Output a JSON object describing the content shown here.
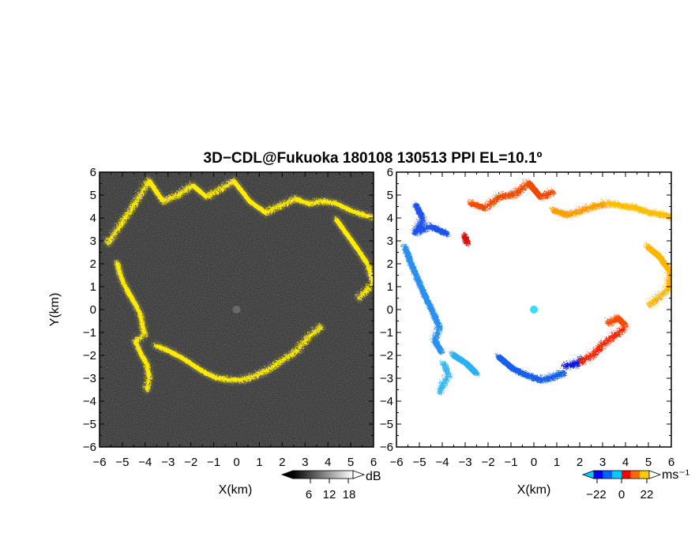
{
  "title": "3D−CDL@Fukuoka 180108 130513 PPI EL=10.1º",
  "chart_data": [
    {
      "type": "heatmap",
      "panel": "reflectivity",
      "xlabel": "X(km)",
      "ylabel": "Y(km)",
      "xlim": [
        -6,
        6
      ],
      "ylim": [
        -6,
        6
      ],
      "x_ticks": [
        "−6",
        "−5",
        "−4",
        "−3",
        "−2",
        "−1",
        "0",
        "1",
        "2",
        "3",
        "4",
        "5",
        "6"
      ],
      "y_ticks": [
        "−6",
        "−5",
        "−4",
        "−3",
        "−2",
        "−1",
        "0",
        "1",
        "2",
        "3",
        "4",
        "5",
        "6"
      ],
      "colorbar": {
        "unit": "dB",
        "ticks": [
          "6",
          "12",
          "18"
        ],
        "colors": [
          "#000000",
          "#303030",
          "#606060",
          "#909090",
          "#c0c0c0",
          "#ffffff"
        ]
      },
      "background_color": "#1b1b1b",
      "echo_color": "#ffeb00",
      "ring_outer": [
        [
          -5.7,
          3.0
        ],
        [
          -5.2,
          3.7
        ],
        [
          -4.6,
          4.6
        ],
        [
          -3.9,
          5.7
        ],
        [
          -3.3,
          4.8
        ],
        [
          -2.6,
          5.1
        ],
        [
          -2.0,
          5.5
        ],
        [
          -1.4,
          5.0
        ],
        [
          -0.8,
          5.3
        ],
        [
          -0.2,
          5.7
        ],
        [
          0.5,
          4.8
        ],
        [
          1.2,
          4.3
        ],
        [
          1.8,
          4.6
        ],
        [
          2.5,
          4.9
        ],
        [
          3.1,
          4.7
        ],
        [
          3.7,
          4.8
        ],
        [
          4.3,
          4.7
        ],
        [
          4.9,
          4.4
        ],
        [
          5.5,
          4.2
        ],
        [
          5.9,
          4.1
        ]
      ],
      "ring_west": [
        [
          -5.3,
          2.1
        ],
        [
          -5.1,
          1.4
        ],
        [
          -4.8,
          0.8
        ],
        [
          -4.5,
          0.3
        ],
        [
          -4.3,
          -0.1
        ],
        [
          -4.2,
          -0.6
        ],
        [
          -4.1,
          -1.0
        ],
        [
          -4.5,
          -1.3
        ],
        [
          -4.3,
          -1.8
        ],
        [
          -4.0,
          -2.3
        ],
        [
          -3.9,
          -2.9
        ],
        [
          -4.0,
          -3.4
        ]
      ],
      "ring_south": [
        [
          -3.6,
          -1.5
        ],
        [
          -2.9,
          -1.8
        ],
        [
          -2.2,
          -2.2
        ],
        [
          -1.6,
          -2.6
        ],
        [
          -1.0,
          -2.9
        ],
        [
          -0.4,
          -3.0
        ],
        [
          0.2,
          -3.0
        ],
        [
          0.8,
          -2.8
        ],
        [
          1.4,
          -2.5
        ],
        [
          2.0,
          -2.1
        ],
        [
          2.6,
          -1.7
        ],
        [
          3.1,
          -1.1
        ],
        [
          3.6,
          -0.7
        ]
      ],
      "ring_east": [
        [
          4.3,
          4.0
        ],
        [
          4.8,
          3.3
        ],
        [
          5.3,
          2.6
        ],
        [
          5.7,
          2.0
        ],
        [
          5.9,
          1.2
        ],
        [
          5.6,
          0.9
        ],
        [
          5.3,
          0.6
        ]
      ],
      "center_spot": [
        0.0,
        0.0
      ]
    },
    {
      "type": "heatmap",
      "panel": "doppler_velocity",
      "xlabel": "X(km)",
      "ylabel": "",
      "xlim": [
        -6,
        6
      ],
      "ylim": [
        -6,
        6
      ],
      "x_ticks": [
        "−6",
        "−5",
        "−4",
        "−3",
        "−2",
        "−1",
        "0",
        "1",
        "2",
        "3",
        "4",
        "5",
        "6"
      ],
      "y_ticks": [
        "−6",
        "−5",
        "−4",
        "−3",
        "−2",
        "−1",
        "0",
        "1",
        "2",
        "3",
        "4",
        "5",
        "6"
      ],
      "colorbar": {
        "unit": "ms⁻¹",
        "ticks": [
          "−22",
          "0",
          "22"
        ],
        "colors": [
          "#0000ff",
          "#0066ff",
          "#00ccff",
          "#ff0000",
          "#ff6a00",
          "#ffcc00"
        ]
      },
      "segments": [
        {
          "points": [
            [
              -5.2,
              4.6
            ],
            [
              -4.9,
              4.0
            ],
            [
              -5.3,
              3.4
            ],
            [
              -4.6,
              3.7
            ],
            [
              -3.9,
              3.4
            ]
          ],
          "color": "#1a52f0"
        },
        {
          "points": [
            [
              -5.7,
              2.8
            ],
            [
              -5.4,
              2.0
            ],
            [
              -5.1,
              1.3
            ],
            [
              -4.8,
              0.6
            ],
            [
              -4.5,
              0.0
            ],
            [
              -4.2,
              -0.7
            ],
            [
              -4.4,
              -1.3
            ],
            [
              -4.1,
              -1.8
            ]
          ],
          "color": "#2a90f0"
        },
        {
          "points": [
            [
              -4.0,
              -2.3
            ],
            [
              -3.8,
              -2.8
            ],
            [
              -4.1,
              -3.3
            ],
            [
              -4.2,
              -3.6
            ]
          ],
          "color": "#3cb8f0"
        },
        {
          "points": [
            [
              -3.6,
              -1.9
            ],
            [
              -3.0,
              -2.3
            ],
            [
              -2.6,
              -2.7
            ]
          ],
          "color": "#2cb0f5"
        },
        {
          "points": [
            [
              -1.6,
              -2.0
            ],
            [
              -1.0,
              -2.5
            ],
            [
              -0.4,
              -2.8
            ],
            [
              0.2,
              -3.0
            ],
            [
              0.7,
              -2.9
            ],
            [
              1.2,
              -2.7
            ]
          ],
          "color": "#1560f0"
        },
        {
          "points": [
            [
              1.3,
              -2.4
            ],
            [
              1.8,
              -2.3
            ],
            [
              2.0,
              -2.1
            ]
          ],
          "color": "#0a1de0"
        },
        {
          "points": [
            [
              2.0,
              -2.2
            ],
            [
              2.5,
              -1.9
            ],
            [
              3.0,
              -1.4
            ],
            [
              3.4,
              -1.1
            ],
            [
              3.8,
              -0.8
            ]
          ],
          "color": "#ff2000"
        },
        {
          "points": [
            [
              3.2,
              -0.5
            ],
            [
              3.6,
              -0.3
            ],
            [
              3.9,
              -0.6
            ]
          ],
          "color": "#ff4a00"
        },
        {
          "points": [
            [
              -2.8,
              4.7
            ],
            [
              -2.2,
              4.5
            ],
            [
              -1.6,
              5.0
            ],
            [
              -0.9,
              5.1
            ],
            [
              -0.3,
              5.6
            ],
            [
              0.2,
              5.0
            ],
            [
              0.8,
              5.2
            ]
          ],
          "color": "#f24b00"
        },
        {
          "points": [
            [
              0.8,
              4.4
            ],
            [
              1.4,
              4.2
            ],
            [
              2.0,
              4.4
            ],
            [
              2.6,
              4.6
            ],
            [
              3.2,
              4.7
            ]
          ],
          "color": "#ff9d00"
        },
        {
          "points": [
            [
              3.2,
              4.7
            ],
            [
              3.8,
              4.6
            ],
            [
              4.4,
              4.5
            ],
            [
              5.0,
              4.3
            ],
            [
              5.6,
              4.2
            ],
            [
              5.9,
              4.1
            ]
          ],
          "color": "#ffbe00"
        },
        {
          "points": [
            [
              4.9,
              2.8
            ],
            [
              5.4,
              2.4
            ],
            [
              5.9,
              1.7
            ],
            [
              5.8,
              1.0
            ],
            [
              5.4,
              0.6
            ],
            [
              5.0,
              0.3
            ]
          ],
          "color": "#ffb400"
        },
        {
          "points": [
            [
              -3.1,
              3.3
            ],
            [
              -3.0,
              3.0
            ]
          ],
          "color": "#e01010"
        }
      ],
      "center_spot": [
        0.0,
        0.0
      ],
      "center_color": "#33ddff"
    }
  ]
}
